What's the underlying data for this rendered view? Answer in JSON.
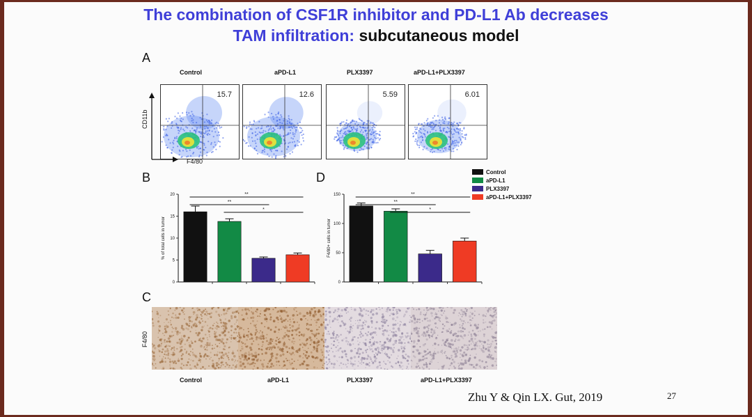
{
  "title": {
    "line1": "The combination of CSF1R inhibitor and PD-L1 Ab decreases",
    "line2_blue": "TAM infiltration:",
    "line2_black": " subcutaneous model"
  },
  "panels": {
    "a": "A",
    "b": "B",
    "c": "C",
    "d": "D"
  },
  "flow": {
    "groups": [
      {
        "label": "Control",
        "percent": "15.7"
      },
      {
        "label": "aPD-L1",
        "percent": "12.6"
      },
      {
        "label": "PLX3397",
        "percent": "5.59"
      },
      {
        "label": "aPD-L1+PLX3397",
        "percent": "6.01"
      }
    ],
    "y_axis_label": "CD11b",
    "x_axis_label": "F4/80"
  },
  "ihc": {
    "y_label": "F4/80",
    "groups": [
      "Control",
      "aPD-L1",
      "PLX3397",
      "aPD-L1+PLX3397"
    ]
  },
  "legend": {
    "items": [
      {
        "name": "Control",
        "color": "#111111"
      },
      {
        "name": "aPD-L1",
        "color": "#128a45"
      },
      {
        "name": "PLX3397",
        "color": "#3b2a8a"
      },
      {
        "name": "aPD-L1+PLX3397",
        "color": "#ef3b24"
      }
    ]
  },
  "chart_data": [
    {
      "type": "bar",
      "panel": "B",
      "categories": [
        "Control",
        "aPD-L1",
        "PLX3397",
        "aPD-L1+PLX3397"
      ],
      "values": [
        16.0,
        13.8,
        5.4,
        6.2
      ],
      "errors": [
        1.3,
        0.6,
        0.3,
        0.4
      ],
      "colors": [
        "#111111",
        "#128a45",
        "#3b2a8a",
        "#ef3b24"
      ],
      "ylabel": "% of total cells in tumor",
      "ylim": [
        0,
        20
      ],
      "yticks": [
        0,
        5,
        10,
        15,
        20
      ],
      "significance": [
        {
          "from": 0,
          "to": 3,
          "label": "**"
        },
        {
          "from": 0,
          "to": 2,
          "label": "**"
        },
        {
          "from": 1,
          "to": 3,
          "label": "*"
        }
      ]
    },
    {
      "type": "bar",
      "panel": "D",
      "categories": [
        "Control",
        "aPD-L1",
        "PLX3397",
        "aPD-L1+PLX3397"
      ],
      "values": [
        130,
        121,
        48,
        70
      ],
      "errors": [
        5,
        4,
        6,
        5
      ],
      "colors": [
        "#111111",
        "#128a45",
        "#3b2a8a",
        "#ef3b24"
      ],
      "ylabel": "F4/80+ cells in tumor",
      "ylim": [
        0,
        150
      ],
      "yticks": [
        0,
        50,
        100,
        150
      ],
      "significance": [
        {
          "from": 0,
          "to": 3,
          "label": "**"
        },
        {
          "from": 0,
          "to": 2,
          "label": "**"
        },
        {
          "from": 1,
          "to": 3,
          "label": "*"
        }
      ]
    }
  ],
  "citation": "Zhu Y & Qin LX. Gut, 2019",
  "page_number": "27"
}
